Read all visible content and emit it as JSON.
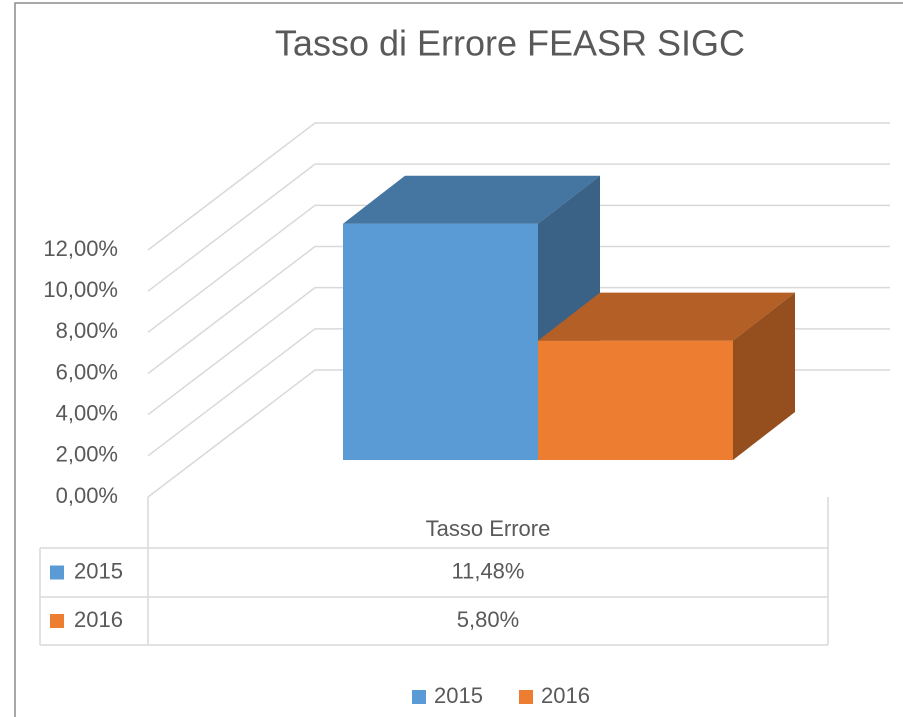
{
  "chart_data": {
    "type": "bar3d",
    "title": "Tasso di Errore FEASR SIGC",
    "categories": [
      "Tasso Errore"
    ],
    "series": [
      {
        "name": "2015",
        "color": "#5b9bd5",
        "values": [
          11.48
        ],
        "value_labels": [
          "11,48%"
        ]
      },
      {
        "name": "2016",
        "color": "#ed7d31",
        "values": [
          5.8
        ],
        "value_labels": [
          "5,80%"
        ]
      }
    ],
    "ylim": [
      0,
      12
    ],
    "yticks": [
      {
        "value": 0,
        "label": "0,00%"
      },
      {
        "value": 2,
        "label": "2,00%"
      },
      {
        "value": 4,
        "label": "4,00%"
      },
      {
        "value": 6,
        "label": "6,00%"
      },
      {
        "value": 8,
        "label": "8,00%"
      },
      {
        "value": 10,
        "label": "10,00%"
      },
      {
        "value": 12,
        "label": "12,00%"
      }
    ],
    "grid": true,
    "legend": "bottom",
    "data_table": true
  }
}
